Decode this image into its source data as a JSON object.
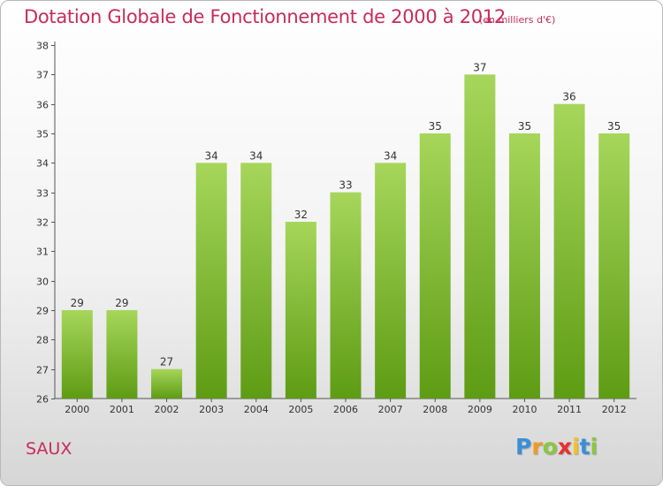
{
  "header": {
    "title": "Dotation Globale de Fonctionnement de 2000 à 2012",
    "subtitle": "(en milliers d'€)"
  },
  "footer": {
    "city": "SAUX",
    "logo": [
      "P",
      "r",
      "o",
      "x",
      "i",
      "t",
      "i"
    ],
    "logo_colors": [
      "#3a8fd8",
      "#f39a1f",
      "#8cc63f",
      "#e8302f",
      "#f3c21f",
      "#3a8fd8",
      "#8cc63f"
    ]
  },
  "colors": {
    "bar_light": "#a6d65a",
    "bar_dark": "#5e9c14",
    "title": "#c72c5b"
  },
  "chart_data": {
    "type": "bar",
    "title": "Dotation Globale de Fonctionnement de 2000 à 2012",
    "subtitle": "(en milliers d'€)",
    "categories": [
      "2000",
      "2001",
      "2002",
      "2003",
      "2004",
      "2005",
      "2006",
      "2007",
      "2008",
      "2009",
      "2010",
      "2011",
      "2012"
    ],
    "values": [
      29,
      29,
      27,
      34,
      34,
      32,
      33,
      34,
      35,
      37,
      35,
      36,
      35
    ],
    "ylim": [
      26,
      38
    ],
    "yticks": [
      26,
      27,
      28,
      29,
      30,
      31,
      32,
      33,
      34,
      35,
      36,
      37,
      38
    ],
    "grid": false,
    "data_labels": true
  }
}
